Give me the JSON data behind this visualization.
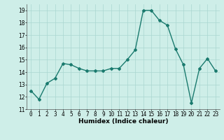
{
  "x": [
    0,
    1,
    2,
    3,
    4,
    5,
    6,
    7,
    8,
    9,
    10,
    11,
    12,
    13,
    14,
    15,
    16,
    17,
    18,
    19,
    20,
    21,
    22,
    23
  ],
  "y": [
    12.5,
    11.8,
    13.1,
    13.5,
    14.7,
    14.6,
    14.3,
    14.1,
    14.1,
    14.1,
    14.3,
    14.3,
    15.0,
    15.8,
    19.0,
    19.0,
    18.2,
    17.8,
    15.9,
    14.6,
    11.5,
    14.3,
    15.1,
    14.1
  ],
  "line_color": "#1a7a6e",
  "marker": "D",
  "marker_size": 2.0,
  "bg_color": "#ceeee8",
  "grid_color": "#aad6d0",
  "xlabel": "Humidex (Indice chaleur)",
  "ylim": [
    11,
    19.5
  ],
  "xlim": [
    -0.5,
    23.5
  ],
  "yticks": [
    11,
    12,
    13,
    14,
    15,
    16,
    17,
    18,
    19
  ],
  "xticks": [
    0,
    1,
    2,
    3,
    4,
    5,
    6,
    7,
    8,
    9,
    10,
    11,
    12,
    13,
    14,
    15,
    16,
    17,
    18,
    19,
    20,
    21,
    22,
    23
  ],
  "xlabel_fontsize": 6.5,
  "tick_fontsize": 5.5,
  "line_width": 1.0
}
